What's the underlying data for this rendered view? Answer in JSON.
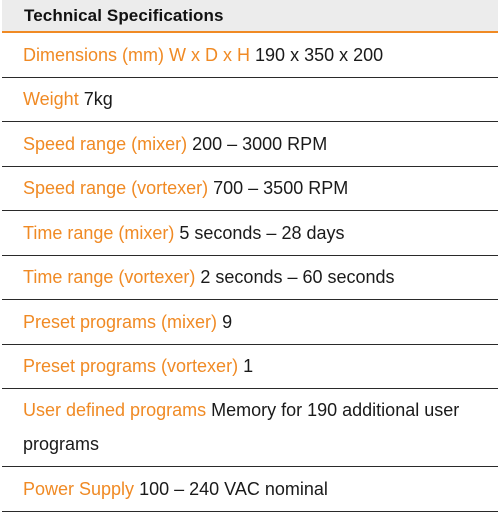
{
  "header": {
    "title": "Technical Specifications"
  },
  "rows": [
    {
      "label": "Dimensions (mm) W x D x H",
      "value": "190 x 350 x 200"
    },
    {
      "label": "Weight",
      "value": "7kg"
    },
    {
      "label": "Speed range (mixer)",
      "value": "200 – 3000 RPM"
    },
    {
      "label": "Speed range (vortexer)",
      "value": "700 – 3500 RPM"
    },
    {
      "label": "Time range (mixer)",
      "value": "5 seconds – 28 days"
    },
    {
      "label": "Time range (vortexer)",
      "value": "2 seconds – 60 seconds"
    },
    {
      "label": "Preset programs (mixer)",
      "value": "9"
    },
    {
      "label": "Preset programs (vortexer)",
      "value": "1"
    },
    {
      "label": "User defined programs",
      "value": "Memory for 190 additional user programs"
    },
    {
      "label": "Power Supply",
      "value": "100 – 240 VAC nominal"
    }
  ],
  "colors": {
    "label_accent": "#f08a24",
    "header_background": "#ececec",
    "text": "#1a1a1a"
  }
}
